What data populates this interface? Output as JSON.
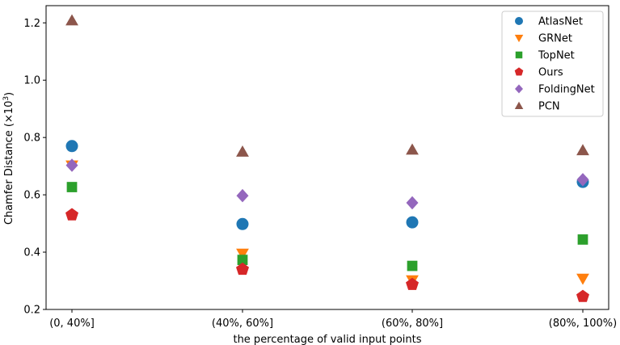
{
  "chart_data": {
    "type": "scatter",
    "title": "",
    "xlabel": "the percentage of valid input points",
    "ylabel": "Chamfer Distance (×10³)",
    "ylabel_main": "Chamfer Distance (×10",
    "ylabel_sup": "3",
    "ylabel_close": ")",
    "categories": [
      "(0, 40%]",
      "(40%, 60%]",
      "(60%, 80%]",
      "(80%, 100%)"
    ],
    "ylim": [
      0.2,
      1.26
    ],
    "yticks": [
      "0.2",
      "0.4",
      "0.6",
      "0.8",
      "1.0",
      "1.2"
    ],
    "grid": false,
    "legend_position": "top-right",
    "series": [
      {
        "name": "AtlasNet",
        "marker": "circle",
        "color": "#1f77b4",
        "values": [
          0.77,
          0.498,
          0.504,
          0.645
        ]
      },
      {
        "name": "GRNet",
        "marker": "triangle-down",
        "color": "#ff7f0e",
        "values": [
          0.703,
          0.395,
          0.302,
          0.308
        ]
      },
      {
        "name": "TopNet",
        "marker": "square",
        "color": "#2ca02c",
        "values": [
          0.627,
          0.373,
          0.352,
          0.444
        ]
      },
      {
        "name": "Ours",
        "marker": "pentagon",
        "color": "#d62728",
        "values": [
          0.53,
          0.34,
          0.287,
          0.245
        ]
      },
      {
        "name": "FoldingNet",
        "marker": "diamond",
        "color": "#9467bd",
        "values": [
          0.703,
          0.597,
          0.572,
          0.653
        ]
      },
      {
        "name": "PCN",
        "marker": "triangle-up",
        "color": "#8c564b",
        "values": [
          1.208,
          0.75,
          0.757,
          0.755
        ]
      }
    ]
  }
}
